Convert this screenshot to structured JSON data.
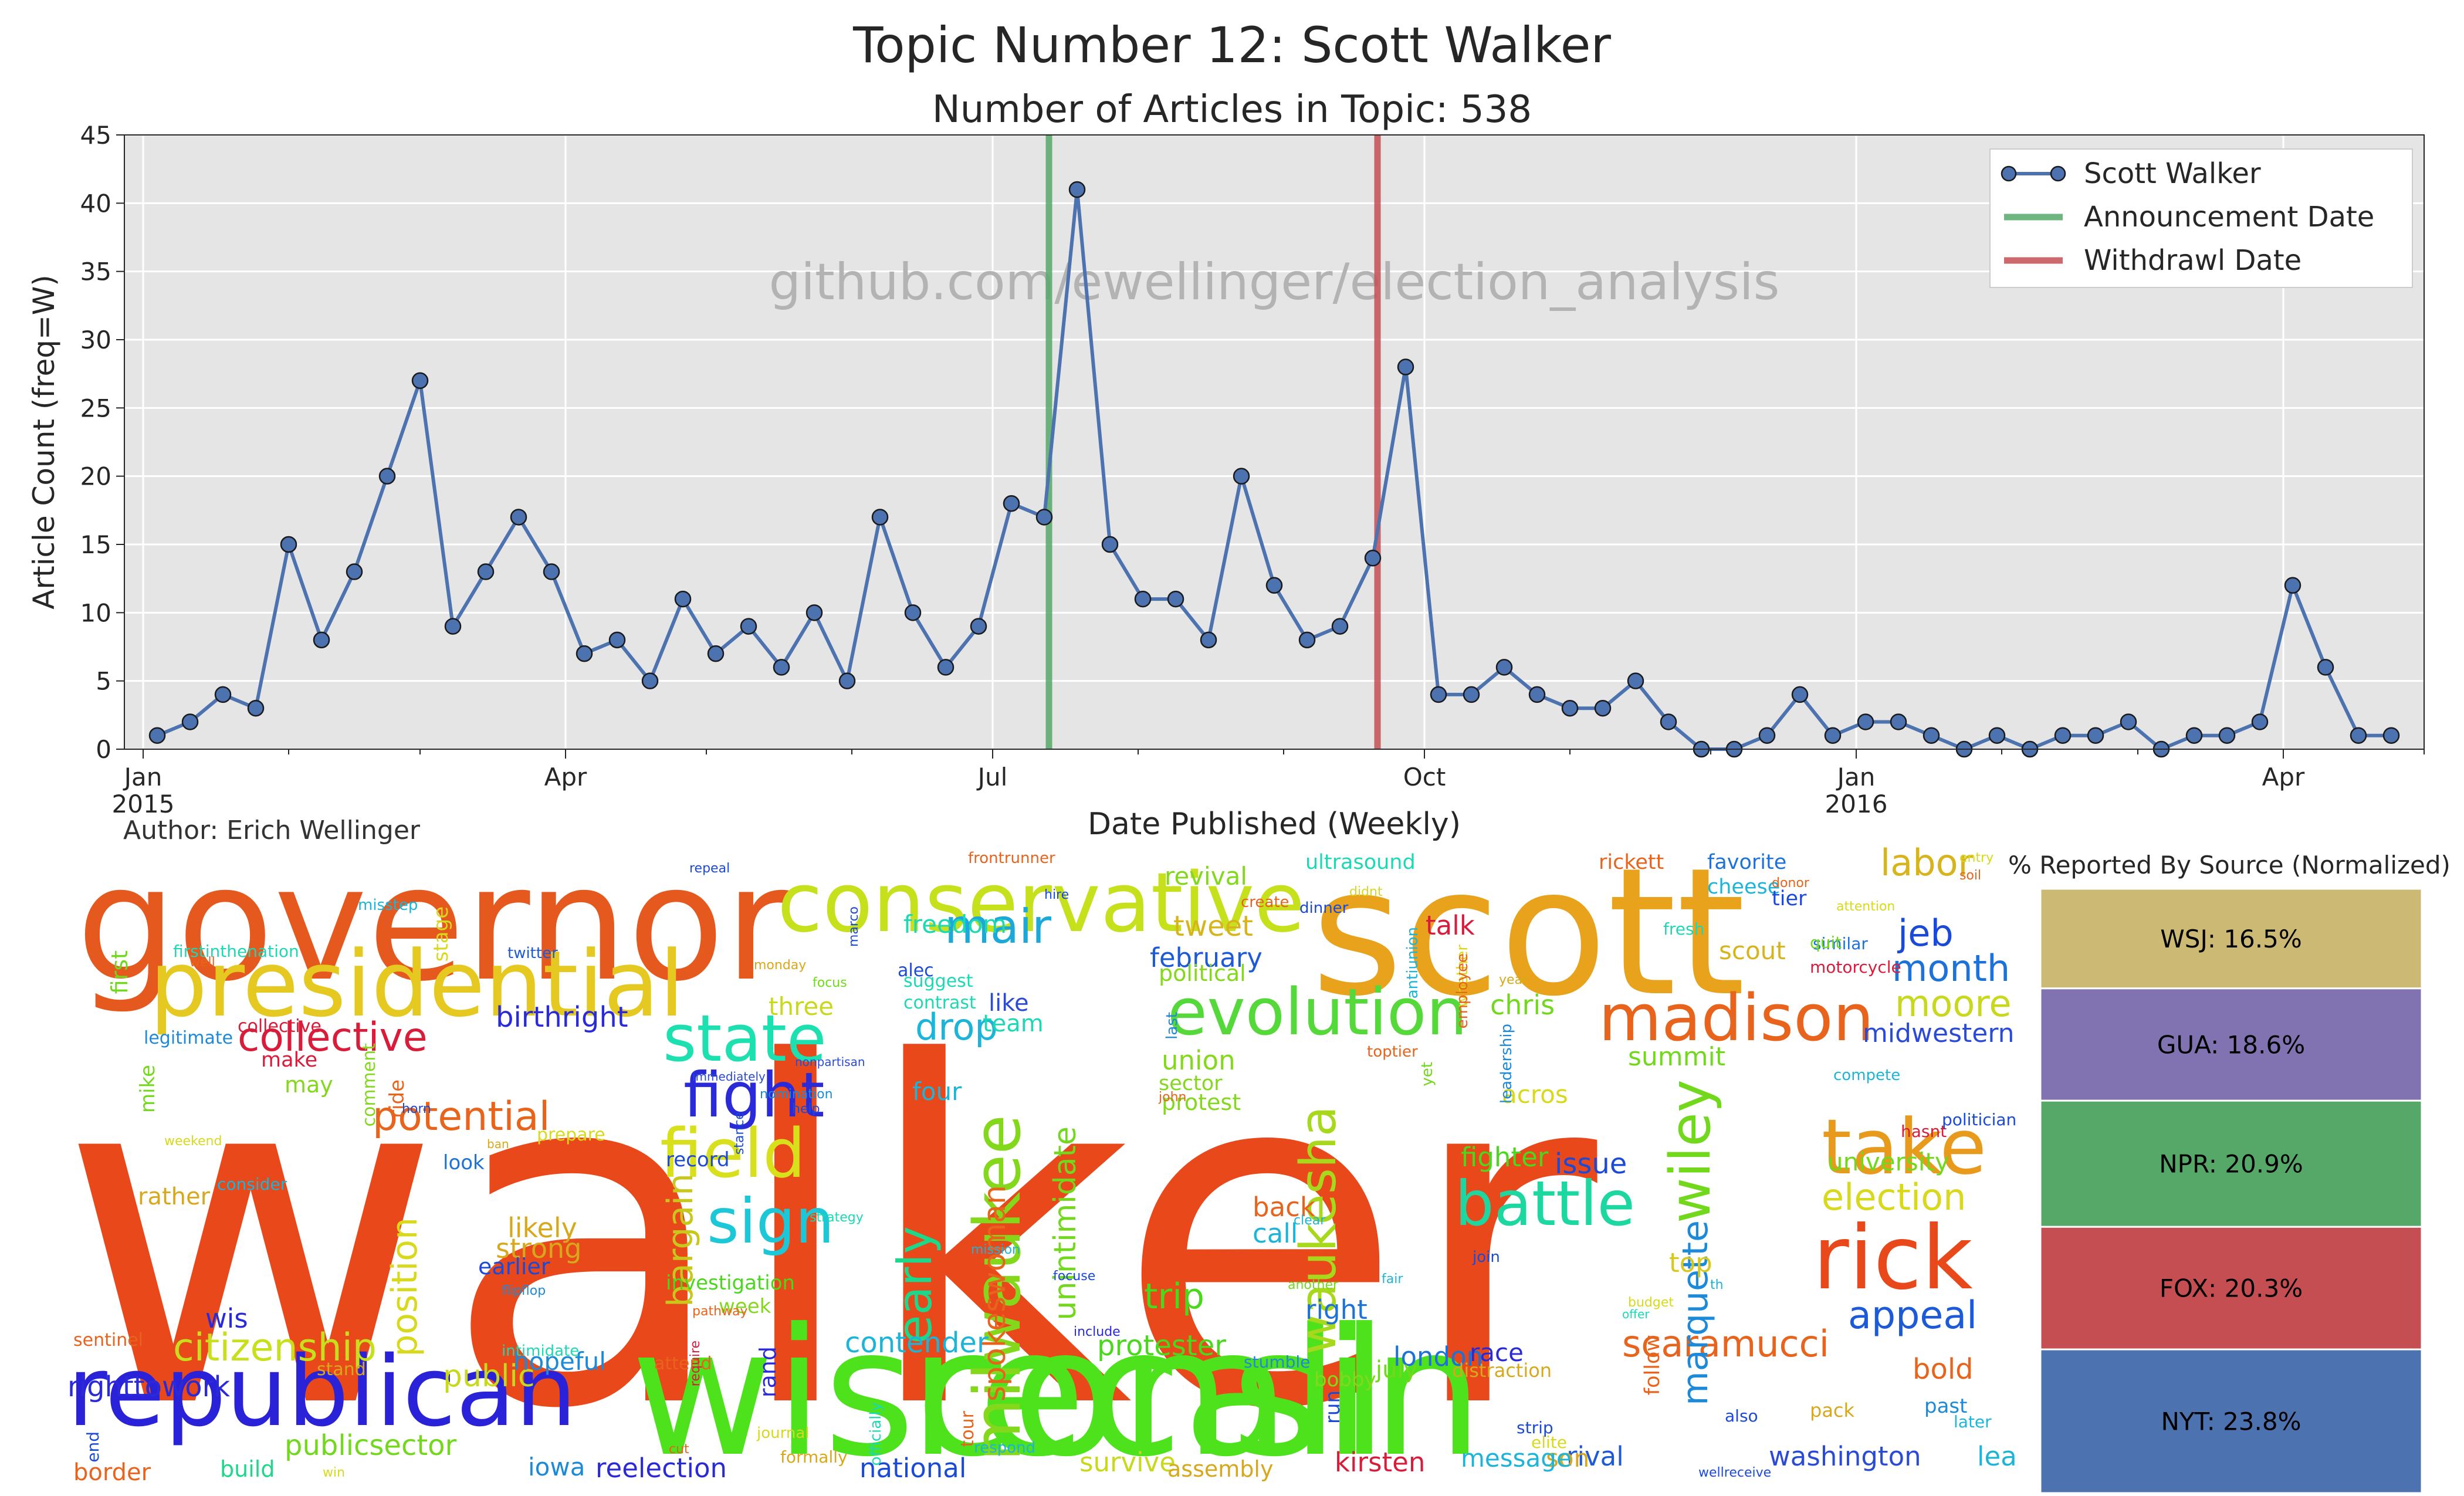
{
  "title": "Topic Number 12: Scott Walker",
  "subtitle": "Number of Articles in Topic: 538",
  "author": "Author: Erich Wellinger",
  "watermark": "github.com/ewellinger/election_analysis",
  "chart_data": [
    {
      "type": "line",
      "title": "Number of Articles in Topic: 538",
      "xlabel": "Date Published (Weekly)",
      "ylabel": "Article Count (freq=W)",
      "ylim": [
        0,
        45
      ],
      "xlim": [
        "2014-12-28",
        "2016-05-01"
      ],
      "yticks": [
        0,
        5,
        10,
        15,
        20,
        25,
        30,
        35,
        40,
        45
      ],
      "xticks": [
        {
          "date": "2015-01-01",
          "label": "Jan",
          "sublabel": "2015"
        },
        {
          "date": "2015-04-01",
          "label": "Apr",
          "sublabel": ""
        },
        {
          "date": "2015-07-01",
          "label": "Jul",
          "sublabel": ""
        },
        {
          "date": "2015-10-01",
          "label": "Oct",
          "sublabel": ""
        },
        {
          "date": "2016-01-01",
          "label": "Jan",
          "sublabel": "2016"
        },
        {
          "date": "2016-04-01",
          "label": "Apr",
          "sublabel": ""
        }
      ],
      "grid": true,
      "legend_position": "top-right",
      "series": [
        {
          "name": "Scott Walker",
          "color": "#4c72b0",
          "x": [
            "2015-01-04",
            "2015-01-11",
            "2015-01-18",
            "2015-01-25",
            "2015-02-01",
            "2015-02-08",
            "2015-02-15",
            "2015-02-22",
            "2015-03-01",
            "2015-03-08",
            "2015-03-15",
            "2015-03-22",
            "2015-03-29",
            "2015-04-05",
            "2015-04-12",
            "2015-04-19",
            "2015-04-26",
            "2015-05-03",
            "2015-05-10",
            "2015-05-17",
            "2015-05-24",
            "2015-05-31",
            "2015-06-07",
            "2015-06-14",
            "2015-06-21",
            "2015-06-28",
            "2015-07-05",
            "2015-07-12",
            "2015-07-19",
            "2015-07-26",
            "2015-08-02",
            "2015-08-09",
            "2015-08-16",
            "2015-08-23",
            "2015-08-30",
            "2015-09-06",
            "2015-09-13",
            "2015-09-20",
            "2015-09-27",
            "2015-10-04",
            "2015-10-11",
            "2015-10-18",
            "2015-10-25",
            "2015-11-01",
            "2015-11-08",
            "2015-11-15",
            "2015-11-22",
            "2015-11-29",
            "2015-12-06",
            "2015-12-13",
            "2015-12-20",
            "2015-12-27",
            "2016-01-03",
            "2016-01-10",
            "2016-01-17",
            "2016-01-24",
            "2016-01-31",
            "2016-02-07",
            "2016-02-14",
            "2016-02-21",
            "2016-02-28",
            "2016-03-06",
            "2016-03-13",
            "2016-03-20",
            "2016-03-27",
            "2016-04-03",
            "2016-04-10",
            "2016-04-17",
            "2016-04-24"
          ],
          "values": [
            1,
            2,
            4,
            3,
            15,
            8,
            13,
            20,
            27,
            9,
            13,
            17,
            13,
            7,
            8,
            5,
            11,
            7,
            9,
            6,
            10,
            5,
            17,
            10,
            6,
            9,
            18,
            17,
            41,
            15,
            11,
            11,
            8,
            20,
            12,
            8,
            9,
            14,
            28,
            4,
            4,
            6,
            4,
            3,
            3,
            5,
            2,
            0,
            0,
            1,
            4,
            1,
            2,
            2,
            1,
            0,
            1,
            0,
            1,
            1,
            2,
            0,
            1,
            1,
            2,
            12,
            6,
            1,
            1
          ]
        },
        {
          "name": "Announcement Date",
          "type": "vline",
          "color": "#55a868",
          "x": "2015-07-13"
        },
        {
          "name": "Withdrawl Date",
          "type": "vline",
          "color": "#c44e52",
          "x": "2015-09-21"
        }
      ]
    },
    {
      "type": "bar",
      "title": "% Reported By Source (Normalized)",
      "stacked": true,
      "segments": [
        {
          "label": "WSJ: 16.5%",
          "value": 16.5,
          "color": "#ccb974"
        },
        {
          "label": "GUA: 18.6%",
          "value": 18.6,
          "color": "#8172b2"
        },
        {
          "label": "NPR: 20.9%",
          "value": 20.9,
          "color": "#55a868"
        },
        {
          "label": "FOX: 20.3%",
          "value": 20.3,
          "color": "#c44e52"
        },
        {
          "label": "NYT: 23.8%",
          "value": 23.8,
          "color": "#4c72b0"
        }
      ]
    }
  ],
  "wordcloud": {
    "words": [
      {
        "text": "walker",
        "color": "#e8481a"
      },
      {
        "text": "wisconsin",
        "color": "#4ee21c"
      },
      {
        "text": "recall",
        "color": "#4ee21c"
      },
      {
        "text": "governor",
        "color": "#e6591e"
      },
      {
        "text": "scott",
        "color": "#e8a21c"
      },
      {
        "text": "republican",
        "color": "#2a22d8"
      },
      {
        "text": "presidential",
        "color": "#e5c820"
      },
      {
        "text": "conservative",
        "color": "#c7e01c"
      },
      {
        "text": "rick",
        "color": "#e8481a"
      },
      {
        "text": "evolution",
        "color": "#55d83a"
      },
      {
        "text": "madison",
        "color": "#e8631c"
      },
      {
        "text": "take",
        "color": "#e89a1c"
      },
      {
        "text": "state",
        "color": "#1ce0b0"
      },
      {
        "text": "field",
        "color": "#d8e01c"
      },
      {
        "text": "battle",
        "color": "#1cd8a0"
      },
      {
        "text": "fight",
        "color": "#2a2ad8"
      },
      {
        "text": "sign",
        "color": "#1cc8d8"
      },
      {
        "text": "milwaukee",
        "color": "#84d81c"
      },
      {
        "text": "waukesha",
        "color": "#a8d81c"
      },
      {
        "text": "wiley",
        "color": "#72d81c"
      },
      {
        "text": "early",
        "color": "#1cd88a"
      },
      {
        "text": "collective",
        "color": "#d81c3a"
      },
      {
        "text": "potential",
        "color": "#e8631c"
      },
      {
        "text": "mair",
        "color": "#1ca8d8"
      },
      {
        "text": "citizenship",
        "color": "#c8e01c"
      },
      {
        "text": "scaramucci",
        "color": "#e8631c"
      },
      {
        "text": "appeal",
        "color": "#1c5ad8"
      },
      {
        "text": "election",
        "color": "#d8d81c"
      },
      {
        "text": "month",
        "color": "#1c72d8"
      },
      {
        "text": "moore",
        "color": "#c8d81c"
      },
      {
        "text": "labor",
        "color": "#d8b41c"
      },
      {
        "text": "jeb",
        "color": "#1c4ad8"
      },
      {
        "text": "marquette",
        "color": "#1c8ad8"
      },
      {
        "text": "position",
        "color": "#d8d81c"
      },
      {
        "text": "bargain",
        "color": "#c8c81c"
      },
      {
        "text": "unintimidate",
        "color": "#72d81c"
      },
      {
        "text": "spokeswoman",
        "color": "#e8631c"
      },
      {
        "text": "drop",
        "color": "#1cb4d8"
      },
      {
        "text": "trip",
        "color": "#4ad81c"
      },
      {
        "text": "birthright",
        "color": "#2a2ad8"
      },
      {
        "text": "contender",
        "color": "#1cb4d8"
      },
      {
        "text": "protester",
        "color": "#4ad81c"
      },
      {
        "text": "publicsector",
        "color": "#72d81c"
      },
      {
        "text": "righttowork",
        "color": "#2a2ad8"
      },
      {
        "text": "freedom",
        "color": "#1cd8b4"
      },
      {
        "text": "tweet",
        "color": "#d8b41c"
      },
      {
        "text": "february",
        "color": "#1c5ad8"
      },
      {
        "text": "summit",
        "color": "#72d81c"
      },
      {
        "text": "midwestern",
        "color": "#2a4ad8"
      },
      {
        "text": "university",
        "color": "#72d81c"
      },
      {
        "text": "issue",
        "color": "#1c4ad8"
      },
      {
        "text": "chris",
        "color": "#72d81c"
      },
      {
        "text": "strong",
        "color": "#d8a81c"
      },
      {
        "text": "likely",
        "color": "#d8a81c"
      },
      {
        "text": "public",
        "color": "#c8d81c"
      },
      {
        "text": "hopeful",
        "color": "#1c8ad8"
      },
      {
        "text": "talk",
        "color": "#d81c3a"
      },
      {
        "text": "union",
        "color": "#84d81c"
      },
      {
        "text": "protest",
        "color": "#84d81c"
      },
      {
        "text": "back",
        "color": "#e8631c"
      },
      {
        "text": "call",
        "color": "#1cb4d8"
      },
      {
        "text": "right",
        "color": "#1c72d8"
      },
      {
        "text": "london",
        "color": "#1c72d8"
      },
      {
        "text": "race",
        "color": "#2a2ad8"
      },
      {
        "text": "bold",
        "color": "#e8631c"
      },
      {
        "text": "rival",
        "color": "#1c5ad8"
      },
      {
        "text": "washington",
        "color": "#2a4ad8"
      },
      {
        "text": "lead",
        "color": "#1cb4d8"
      },
      {
        "text": "kirsten",
        "color": "#d81c3a"
      },
      {
        "text": "national",
        "color": "#1c4ad8"
      },
      {
        "text": "reelection",
        "color": "#2a2ad8"
      },
      {
        "text": "iowa",
        "color": "#1c8ad8"
      },
      {
        "text": "survive",
        "color": "#c8d81c"
      },
      {
        "text": "assembly",
        "color": "#d8a81c"
      },
      {
        "text": "son",
        "color": "#d8a81c"
      },
      {
        "text": "message",
        "color": "#1cb4d8"
      },
      {
        "text": "border",
        "color": "#e8631c"
      },
      {
        "text": "build",
        "color": "#1cd88a"
      },
      {
        "text": "wis",
        "color": "#2a2ad8"
      },
      {
        "text": "top",
        "color": "#d8c81c"
      },
      {
        "text": "fighter",
        "color": "#4ad81c"
      },
      {
        "text": "acros",
        "color": "#d8d81c"
      },
      {
        "text": "four",
        "color": "#1cb4d8"
      },
      {
        "text": "three",
        "color": "#c8d81c"
      },
      {
        "text": "like",
        "color": "#2a4ad8"
      },
      {
        "text": "team",
        "color": "#1cd8b4"
      },
      {
        "text": "make",
        "color": "#d81c3a"
      },
      {
        "text": "may",
        "color": "#84d81c"
      },
      {
        "text": "mike",
        "color": "#72d81c"
      },
      {
        "text": "first",
        "color": "#72d81c"
      },
      {
        "text": "rather",
        "color": "#d8a81c"
      },
      {
        "text": "ride",
        "color": "#e8631c"
      },
      {
        "text": "record",
        "color": "#1c4ad8"
      },
      {
        "text": "look",
        "color": "#1c72d8"
      },
      {
        "text": "earlier",
        "color": "#1c4ad8"
      },
      {
        "text": "investigation",
        "color": "#4ad81c"
      },
      {
        "text": "week",
        "color": "#84d81c"
      },
      {
        "text": "rand",
        "color": "#2a2ad8"
      },
      {
        "text": "scout",
        "color": "#d8b41c"
      },
      {
        "text": "revival",
        "color": "#84d81c"
      },
      {
        "text": "rickett",
        "color": "#e8631c"
      },
      {
        "text": "favorite",
        "color": "#1c72d8"
      },
      {
        "text": "cheese",
        "color": "#1cb4d8"
      },
      {
        "text": "tier",
        "color": "#1c4ad8"
      },
      {
        "text": "sector",
        "color": "#84d81c"
      },
      {
        "text": "political",
        "color": "#84d81c"
      },
      {
        "text": "ultrasound",
        "color": "#1cd8b4"
      },
      {
        "text": "legitimate",
        "color": "#1c8ad8"
      },
      {
        "text": "collective",
        "color": "#d81c3a"
      },
      {
        "text": "follow",
        "color": "#e8631c"
      },
      {
        "text": "sentinel",
        "color": "#e8631c"
      },
      {
        "text": "stand",
        "color": "#d8a81c"
      },
      {
        "text": "misstep",
        "color": "#1cb4d8"
      },
      {
        "text": "stage",
        "color": "#d8d81c"
      },
      {
        "text": "firstinthenation",
        "color": "#1cd8b4"
      },
      {
        "text": "twitter",
        "color": "#1c5ad8"
      },
      {
        "text": "suggest",
        "color": "#1cd8b4"
      },
      {
        "text": "contrast",
        "color": "#1cd8b4"
      },
      {
        "text": "alec",
        "color": "#1c4ad8"
      },
      {
        "text": "comment",
        "color": "#84d81c"
      },
      {
        "text": "attend",
        "color": "#e8631c"
      },
      {
        "text": "journal",
        "color": "#d8d81c"
      },
      {
        "text": "officially",
        "color": "#1cd8b4"
      },
      {
        "text": "respond",
        "color": "#1cb4d8"
      },
      {
        "text": "tour",
        "color": "#e8631c"
      },
      {
        "text": "formally",
        "color": "#d8a81c"
      },
      {
        "text": "stumble",
        "color": "#1c8ad8"
      },
      {
        "text": "bobby",
        "color": "#84d81c"
      },
      {
        "text": "run",
        "color": "#1c4ad8"
      },
      {
        "text": "july",
        "color": "#72d81c"
      },
      {
        "text": "distraction",
        "color": "#d8a81c"
      },
      {
        "text": "strip",
        "color": "#1c4ad8"
      },
      {
        "text": "elite",
        "color": "#d8d81c"
      },
      {
        "text": "pack",
        "color": "#d8a81c"
      },
      {
        "text": "past",
        "color": "#1c8ad8"
      },
      {
        "text": "later",
        "color": "#1cb4d8"
      },
      {
        "text": "fall",
        "color": "#e8631c"
      },
      {
        "text": "also",
        "color": "#1c4ad8"
      },
      {
        "text": "similar",
        "color": "#1c72d8"
      },
      {
        "text": "quit",
        "color": "#72d81c"
      },
      {
        "text": "fresh",
        "color": "#1cd8b4"
      },
      {
        "text": "motorcycle",
        "color": "#d81c3a"
      },
      {
        "text": "compete",
        "color": "#1cb4d8"
      },
      {
        "text": "hasnt",
        "color": "#d81c3a"
      },
      {
        "text": "politician",
        "color": "#1c4ad8"
      },
      {
        "text": "visit",
        "color": "#d81c3a"
      },
      {
        "text": "send",
        "color": "#1cb4d8"
      },
      {
        "text": "leadership",
        "color": "#1c8ad8"
      },
      {
        "text": "toptier",
        "color": "#e8631c"
      },
      {
        "text": "yet",
        "color": "#72d81c"
      },
      {
        "text": "antiunion",
        "color": "#1cb4d8"
      },
      {
        "text": "whether",
        "color": "#d8d81c"
      },
      {
        "text": "employee",
        "color": "#e8631c"
      },
      {
        "text": "last",
        "color": "#1c8ad8"
      },
      {
        "text": "john",
        "color": "#e8631c"
      },
      {
        "text": "frontrunner",
        "color": "#e8631c"
      },
      {
        "text": "repeal",
        "color": "#1c4ad8"
      },
      {
        "text": "marco",
        "color": "#1c4ad8"
      },
      {
        "text": "monday",
        "color": "#d8a81c"
      },
      {
        "text": "focus",
        "color": "#72d81c"
      },
      {
        "text": "immediately",
        "color": "#2a4ad8"
      },
      {
        "text": "nonpartisan",
        "color": "#2a4ad8"
      },
      {
        "text": "help",
        "color": "#1c4ad8"
      },
      {
        "text": "nomination",
        "color": "#1c8ad8"
      },
      {
        "text": "prepare",
        "color": "#d8d81c"
      },
      {
        "text": "horn",
        "color": "#1c4ad8"
      },
      {
        "text": "ban",
        "color": "#d8a81c"
      },
      {
        "text": "strategy",
        "color": "#1cd8b4"
      },
      {
        "text": "consider",
        "color": "#1cb4d8"
      },
      {
        "text": "flipflop",
        "color": "#1c8ad8"
      },
      {
        "text": "pathway",
        "color": "#e8631c"
      },
      {
        "text": "require",
        "color": "#d81c3a"
      },
      {
        "text": "include",
        "color": "#2a2ad8"
      },
      {
        "text": "mission",
        "color": "#1cb4d8"
      },
      {
        "text": "focuse",
        "color": "#1c4ad8"
      },
      {
        "text": "another",
        "color": "#72d81c"
      },
      {
        "text": "clear",
        "color": "#1cb4d8"
      },
      {
        "text": "fair",
        "color": "#1cb4d8"
      },
      {
        "text": "join",
        "color": "#1c4ad8"
      },
      {
        "text": "budget",
        "color": "#d8d81c"
      },
      {
        "text": "offer",
        "color": "#1cd8b4"
      },
      {
        "text": "didnt",
        "color": "#d8d81c"
      },
      {
        "text": "dinner",
        "color": "#1c4ad8"
      },
      {
        "text": "create",
        "color": "#e8631c"
      },
      {
        "text": "hire",
        "color": "#1c4ad8"
      },
      {
        "text": "stance",
        "color": "#1c4ad8"
      },
      {
        "text": "intimidate",
        "color": "#1cd8b4"
      },
      {
        "text": "attention",
        "color": "#d8d81c"
      },
      {
        "text": "entry",
        "color": "#d8d81c"
      },
      {
        "text": "soil",
        "color": "#e8631c"
      },
      {
        "text": "well",
        "color": "#e8631c"
      },
      {
        "text": "weekend",
        "color": "#d8d81c"
      },
      {
        "text": "end",
        "color": "#1c4ad8"
      },
      {
        "text": "cut",
        "color": "#e8631c"
      },
      {
        "text": "win",
        "color": "#d8d81c"
      },
      {
        "text": "wellreceive",
        "color": "#1c4ad8"
      },
      {
        "text": "th",
        "color": "#1cb4d8"
      },
      {
        "text": "donor",
        "color": "#e8631c"
      },
      {
        "text": "year",
        "color": "#d8a81c"
      },
      {
        "text": "highprofile",
        "color": "#1c4ad8"
      }
    ]
  }
}
